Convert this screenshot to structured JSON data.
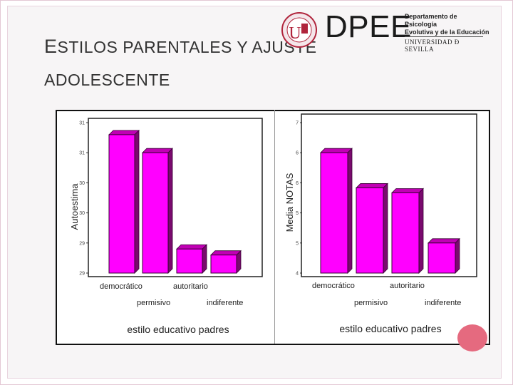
{
  "slide": {
    "title_cap": "E",
    "title_line1": "STILOS PARENTALES Y AJUSTE",
    "title_line2": "ADOLESCENTE"
  },
  "logos": {
    "seal_letter": "U",
    "brand": "DPEE",
    "dept_line1": "Departamento de Psicología",
    "dept_line2": "Evolutiva y de la Educación",
    "university": "UNIVERSIDAD Ð SEVILLA"
  },
  "colors": {
    "bar_front": "#ff00ff",
    "bar_side": "#7a0a6e",
    "bar_top": "#c000b4",
    "accent": "#e56a7f"
  },
  "chart_data": [
    {
      "type": "bar",
      "categories": [
        "democrático",
        "permisivo",
        "autoritario",
        "indiferente"
      ],
      "values": [
        31.3,
        31.0,
        29.4,
        29.3
      ],
      "ylim": [
        29,
        31.5
      ],
      "ticks": [
        "29",
        "29",
        "30",
        "30",
        "31",
        "31"
      ],
      "ylabel": "Autoestima",
      "xlabel": "estilo educativo padres",
      "grid": false
    },
    {
      "type": "bar",
      "categories": [
        "democrático",
        "permisivo",
        "autoritario",
        "indiferente"
      ],
      "values": [
        6.4,
        5.7,
        5.6,
        4.6
      ],
      "ylim": [
        4.0,
        7.0
      ],
      "ticks": [
        "4",
        "5",
        "5",
        "6",
        "6",
        "7"
      ],
      "ylabel": "Media NOTAS",
      "xlabel": "estilo educativo padres",
      "grid": false
    }
  ]
}
